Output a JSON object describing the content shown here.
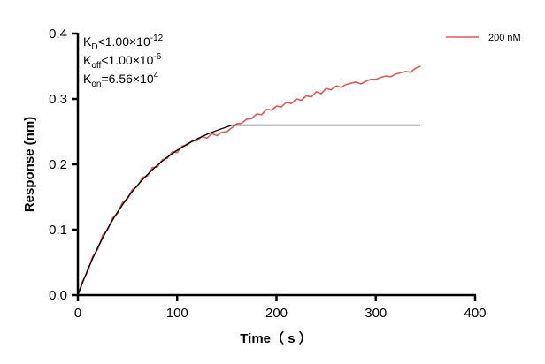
{
  "chart_data": {
    "type": "line",
    "title": "",
    "xlabel": "Time（ s ）",
    "ylabel": "Response (nm)",
    "xlim": [
      0,
      400
    ],
    "ylim": [
      0,
      0.4
    ],
    "xticks": [
      "0",
      "100",
      "200",
      "300",
      "400"
    ],
    "yticks": [
      "0.0",
      "0.1",
      "0.2",
      "0.3",
      "0.4"
    ],
    "grid": false,
    "legend_position": "top-right",
    "annotations": [
      {
        "main": "K",
        "sub": "D",
        "rel": "<1.00×10",
        "sup": "-12"
      },
      {
        "main": "K",
        "sub": "off",
        "rel": "<1.00×10",
        "sup": "-6"
      },
      {
        "main": "K",
        "sub": "on",
        "rel": "=6.56×10",
        "sup": "4"
      }
    ],
    "series": [
      {
        "name": "200 nM",
        "color": "#e05a5a",
        "x": [
          0,
          5,
          10,
          15,
          20,
          25,
          30,
          35,
          40,
          45,
          50,
          55,
          60,
          65,
          70,
          75,
          80,
          85,
          90,
          95,
          100,
          105,
          110,
          115,
          120,
          125,
          130,
          135,
          140,
          145,
          150,
          155,
          160,
          165,
          170,
          175,
          180,
          185,
          190,
          195,
          200,
          205,
          210,
          215,
          220,
          225,
          230,
          235,
          240,
          245,
          250,
          255,
          260,
          265,
          270,
          275,
          280,
          285,
          290,
          295,
          300,
          305,
          310,
          315,
          320,
          325,
          330,
          335,
          340,
          345
        ],
        "y": [
          0,
          0.022,
          0.036,
          0.059,
          0.07,
          0.092,
          0.1,
          0.118,
          0.125,
          0.142,
          0.147,
          0.162,
          0.166,
          0.18,
          0.182,
          0.195,
          0.196,
          0.207,
          0.209,
          0.219,
          0.218,
          0.228,
          0.229,
          0.236,
          0.236,
          0.243,
          0.24,
          0.247,
          0.244,
          0.249,
          0.25,
          0.256,
          0.262,
          0.263,
          0.269,
          0.27,
          0.277,
          0.276,
          0.284,
          0.283,
          0.289,
          0.288,
          0.295,
          0.293,
          0.3,
          0.298,
          0.305,
          0.303,
          0.311,
          0.308,
          0.316,
          0.314,
          0.32,
          0.318,
          0.322,
          0.324,
          0.326,
          0.323,
          0.327,
          0.33,
          0.33,
          0.333,
          0.335,
          0.334,
          0.338,
          0.34,
          0.342,
          0.341,
          0.347,
          0.35
        ]
      },
      {
        "name": "",
        "color": "#000000",
        "x": [
          0,
          5,
          10,
          15,
          20,
          25,
          30,
          35,
          40,
          45,
          50,
          55,
          60,
          65,
          70,
          75,
          80,
          85,
          90,
          95,
          100,
          110,
          120,
          130,
          140,
          150,
          155,
          345
        ],
        "y": [
          0,
          0.0202,
          0.0389,
          0.0563,
          0.0726,
          0.0877,
          0.1017,
          0.1148,
          0.127,
          0.1383,
          0.1489,
          0.1587,
          0.1679,
          0.1764,
          0.1843,
          0.1917,
          0.1985,
          0.2049,
          0.2109,
          0.2164,
          0.2216,
          0.2309,
          0.2389,
          0.2459,
          0.2519,
          0.2571,
          0.26,
          0.26
        ]
      }
    ]
  }
}
